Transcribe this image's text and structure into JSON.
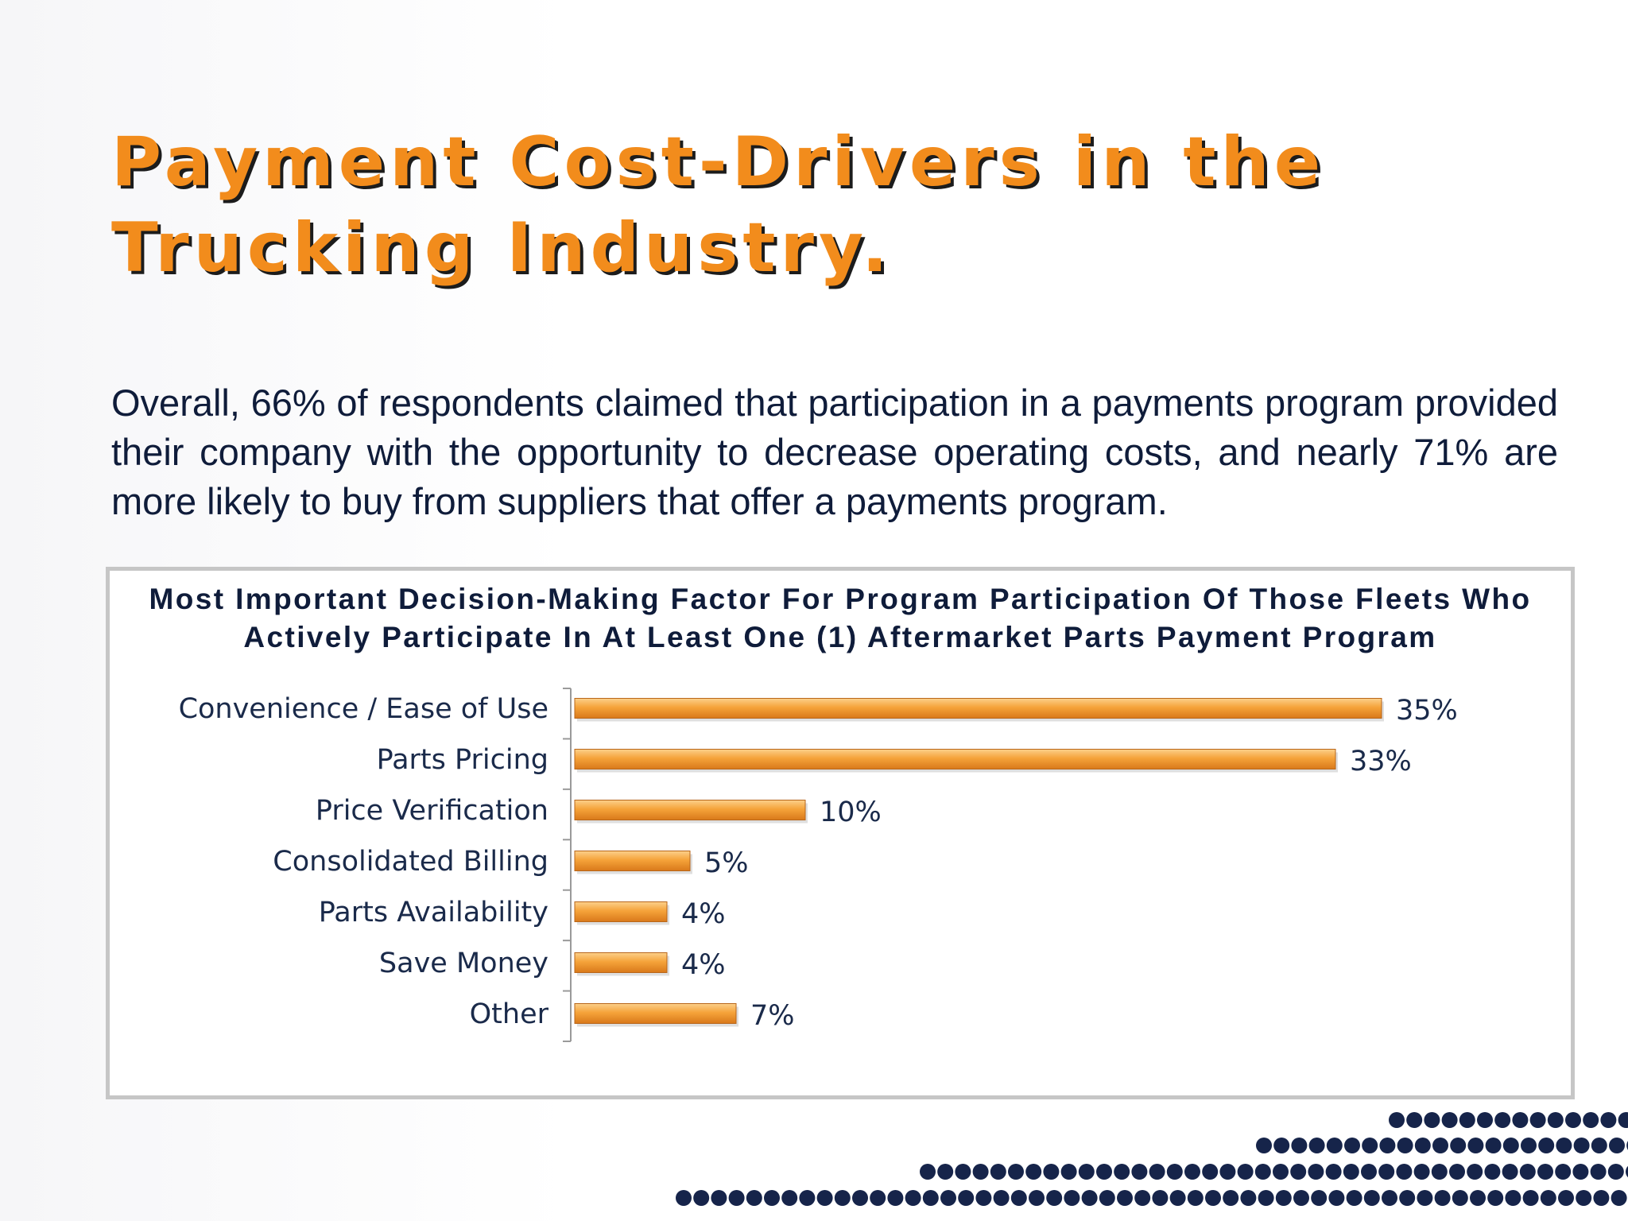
{
  "slide": {
    "title_line1": "Payment Cost-Drivers in the",
    "title_line2": "Trucking Industry.",
    "intro": "Overall, 66% of respondents claimed that participation in a payments program provided their company with the opportunity to decrease operating costs, and nearly 71% are more likely to buy from suppliers that offer a payments program."
  },
  "colors": {
    "title": "#f28c1c",
    "bar": "#f29a2e",
    "text": "#0f1c3a",
    "dots": "#16244a"
  },
  "chart_data": {
    "type": "bar",
    "orientation": "horizontal",
    "title": "Most Important Decision-Making Factor For Program Participation Of Those Fleets Who Actively Participate In At Least One (1) Aftermarket Parts Payment Program",
    "categories": [
      "Convenience / Ease of Use",
      "Parts Pricing",
      "Price Verification",
      "Consolidated Billing",
      "Parts Availability",
      "Save Money",
      "Other"
    ],
    "values": [
      35,
      33,
      10,
      5,
      4,
      4,
      7
    ],
    "value_labels": [
      "35%",
      "33%",
      "10%",
      "5%",
      "4%",
      "4%",
      "7%"
    ],
    "unit": "%",
    "xlim": [
      0,
      40
    ],
    "grid": false,
    "legend": "none"
  }
}
